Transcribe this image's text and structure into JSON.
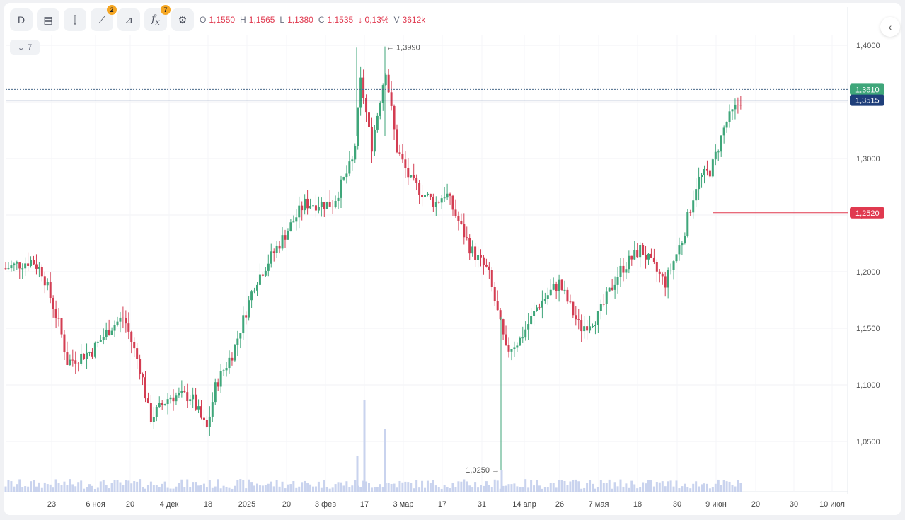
{
  "toolbar": {
    "interval_label": "D",
    "indicator_badge": "2",
    "function_badge": "7"
  },
  "ohlc": {
    "o_label": "O",
    "o": "1,1550",
    "h_label": "H",
    "h": "1,1565",
    "l_label": "L",
    "l": "1,1380",
    "c_label": "C",
    "c": "1,1535",
    "change": "↓ 0,13%",
    "v_label": "V",
    "v": "3612k"
  },
  "collapse_label": "7",
  "chart_data": {
    "type": "candlestick",
    "ylim": [
      1.0,
      1.42
    ],
    "y_ticks": [
      "1,4000",
      "1,3500",
      "1,3000",
      "1,2500",
      "1,2000",
      "1,1500",
      "1,1000",
      "1,0500"
    ],
    "y_tick_values": [
      1.4,
      1.35,
      1.3,
      1.25,
      1.2,
      1.15,
      1.1,
      1.05
    ],
    "x_ticks": [
      "23",
      "6 ноя",
      "20",
      "4 дек",
      "18",
      "2025",
      "20",
      "3 фев",
      "17",
      "3 мар",
      "17",
      "31",
      "14 апр",
      "26",
      "7 мая",
      "18",
      "30",
      "9 июн",
      "20",
      "30",
      "10 июл"
    ],
    "high_marker": "1,3990",
    "high_marker_value": 1.399,
    "low_marker": "1,0250",
    "low_marker_value": 1.025,
    "last_price_label": "1,3610",
    "last_price_value": 1.361,
    "line_level_label": "1,3515",
    "line_level_value": 1.3515,
    "alert_label": "1,2520",
    "alert_value": 1.252,
    "colors": {
      "up": "#3fa67a",
      "down": "#d33d52",
      "volume": "#c9d3ee",
      "level": "#1f3f7a",
      "last": "#3fa67a",
      "alert": "#e0394f"
    }
  }
}
